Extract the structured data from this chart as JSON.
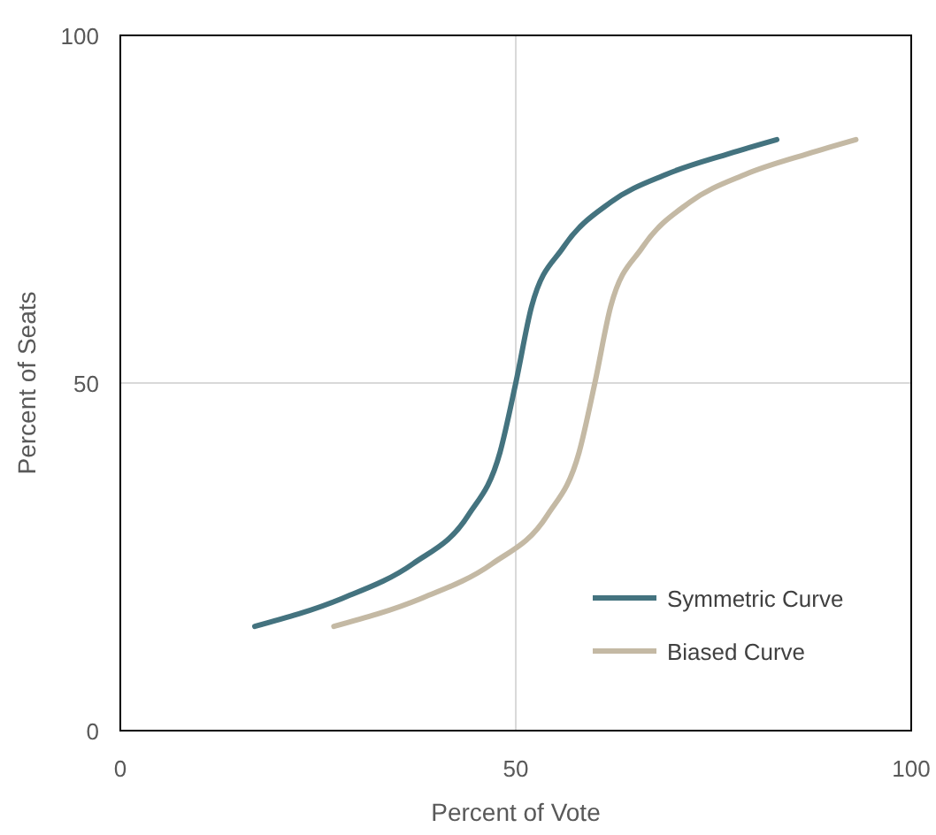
{
  "chart_data": {
    "type": "line",
    "xlabel": "Percent of Vote",
    "ylabel": "Percent of Seats",
    "xlim": [
      0,
      100
    ],
    "ylim": [
      0,
      100
    ],
    "xticks": [
      0,
      50,
      100
    ],
    "yticks": [
      0,
      50,
      100
    ],
    "grid": true,
    "legend": "bottom right",
    "marker": "none",
    "line_style": "solid",
    "series": [
      {
        "name": "Symmetric Curve",
        "color": "#44737f",
        "x": [
          17,
          28,
          37,
          44,
          48,
          50,
          52,
          56,
          62,
          69,
          77,
          83
        ],
        "values": [
          15,
          19,
          24,
          31,
          40,
          50,
          61,
          69.5,
          76,
          80,
          83,
          85
        ]
      },
      {
        "name": "Biased Curve",
        "color": "#c4b9a4",
        "x": [
          27,
          38,
          47,
          54,
          58,
          60,
          62,
          66,
          72,
          79,
          87,
          93
        ],
        "values": [
          15,
          19,
          24,
          31,
          40,
          50,
          61,
          69.5,
          76,
          80,
          83,
          85
        ]
      }
    ]
  }
}
